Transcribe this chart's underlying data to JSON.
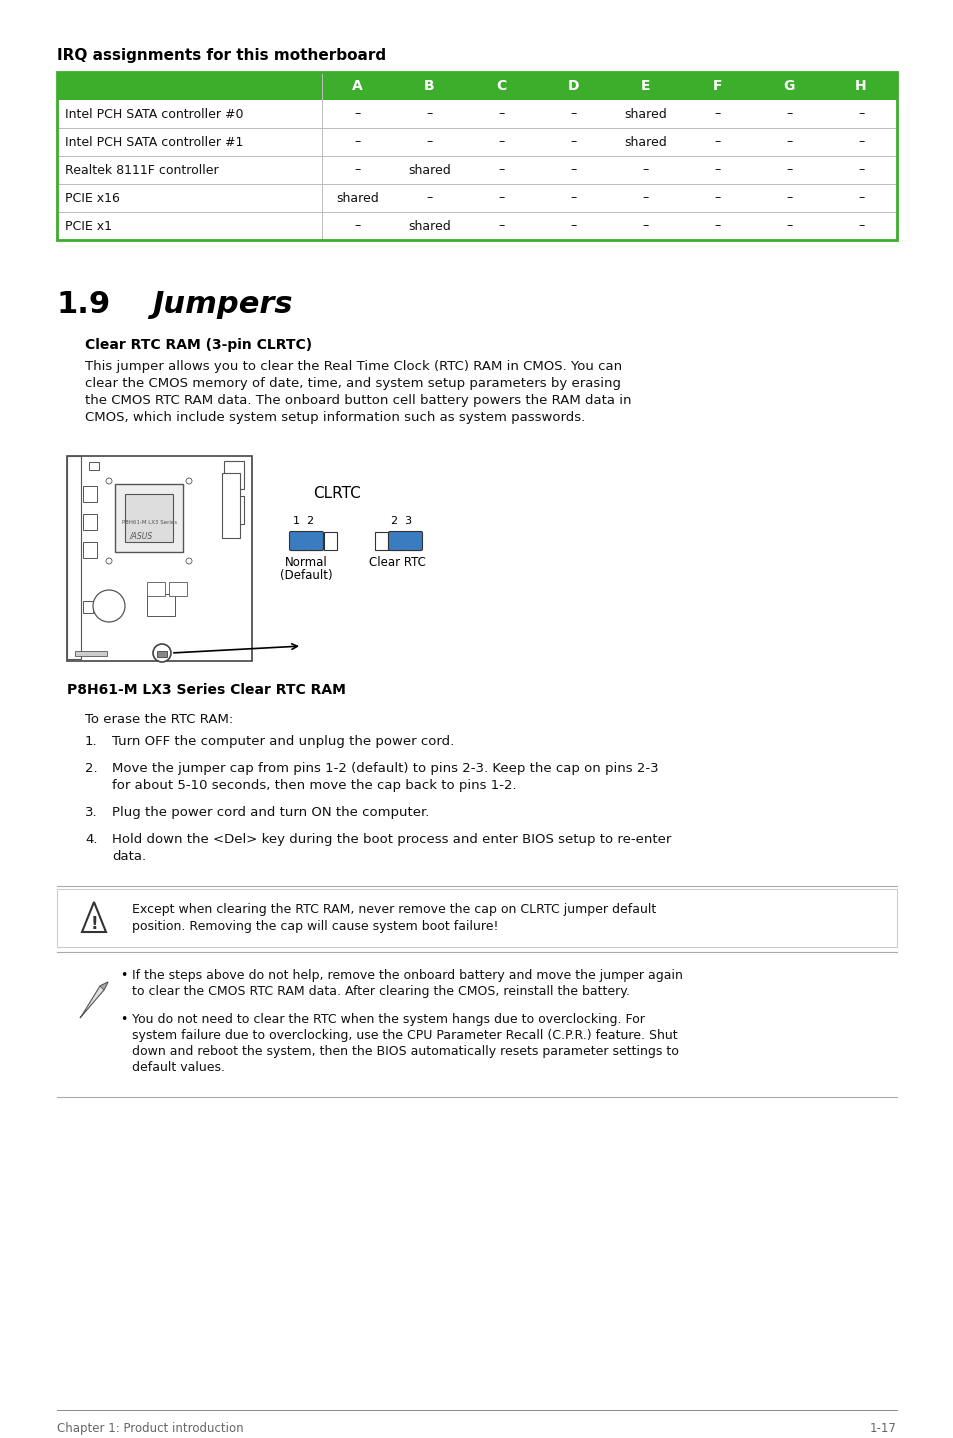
{
  "bg_color": "#ffffff",
  "title_irq": "IRQ assignments for this motherboard",
  "table_header": [
    "",
    "A",
    "B",
    "C",
    "D",
    "E",
    "F",
    "G",
    "H"
  ],
  "table_header_bg": "#3dae2b",
  "table_header_fg": "#ffffff",
  "table_rows": [
    [
      "Intel PCH SATA controller #0",
      "–",
      "–",
      "–",
      "–",
      "shared",
      "–",
      "–",
      "–"
    ],
    [
      "Intel PCH SATA controller #1",
      "–",
      "–",
      "–",
      "–",
      "shared",
      "–",
      "–",
      "–"
    ],
    [
      "Realtek 8111F controller",
      "–",
      "shared",
      "–",
      "–",
      "–",
      "–",
      "–",
      "–"
    ],
    [
      "PCIE x16",
      "shared",
      "–",
      "–",
      "–",
      "–",
      "–",
      "–",
      "–"
    ],
    [
      "PCIE x1",
      "–",
      "shared",
      "–",
      "–",
      "–",
      "–",
      "–",
      "–"
    ]
  ],
  "table_border_color": "#3dae2b",
  "table_row_border_color": "#cccccc",
  "section_number": "1.9",
  "section_title": "Jumpers",
  "subsection_title": "Clear RTC RAM (3-pin CLRTC)",
  "body_text1": "This jumper allows you to clear the Real Time Clock (RTC) RAM in CMOS. You can\nclear the CMOS memory of date, time, and system setup parameters by erasing\nthe CMOS RTC RAM data. The onboard button cell battery powers the RAM data in\nCMOS, which include system setup information such as system passwords.",
  "diagram_caption": "P8H61-M LX3 Series Clear RTC RAM",
  "clrtc_label": "CLRTC",
  "normal_label1": "1  2",
  "normal_label2": "Normal",
  "normal_label3": "(Default)",
  "clear_label1": "2  3",
  "clear_label2": "Clear RTC",
  "erase_intro": "To erase the RTC RAM:",
  "steps": [
    "Turn OFF the computer and unplug the power cord.",
    "Move the jumper cap from pins 1-2 (default) to pins 2-3. Keep the cap on pins 2-3\nfor about 5-10 seconds, then move the cap back to pins 1-2.",
    "Plug the power cord and turn ON the computer.",
    "Hold down the <Del> key during the boot process and enter BIOS setup to re-enter\ndata."
  ],
  "warning_text": "Except when clearing the RTC RAM, never remove the cap on CLRTC jumper default\nposition. Removing the cap will cause system boot failure!",
  "note_bullets": [
    "If the steps above do not help, remove the onboard battery and move the jumper again\nto clear the CMOS RTC RAM data. After clearing the CMOS, reinstall the battery.",
    "You do not need to clear the RTC when the system hangs due to overclocking. For\nsystem failure due to overclocking, use the CPU Parameter Recall (C.P.R.) feature. Shut\ndown and reboot the system, then the BIOS automatically resets parameter settings to\ndefault values."
  ],
  "footer_left": "Chapter 1: Product introduction",
  "footer_right": "1-17",
  "jumper_blue": "#3b7bbf",
  "jumper_outline": "#333333"
}
